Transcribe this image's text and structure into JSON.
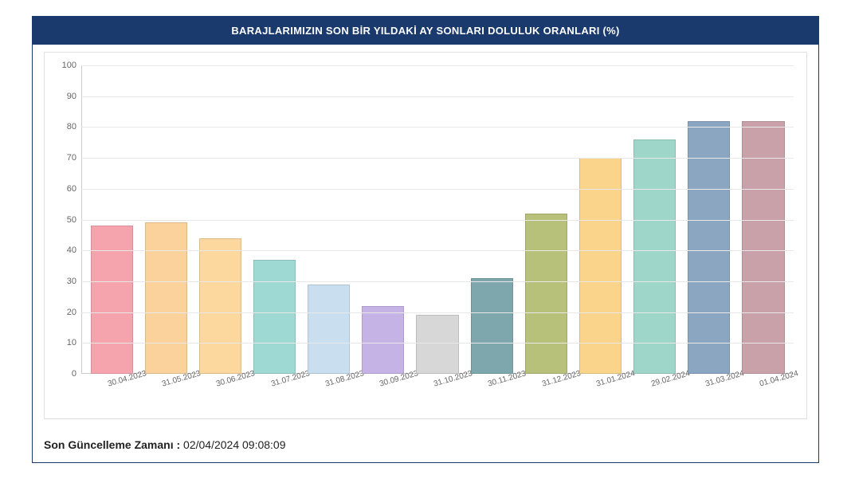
{
  "chart": {
    "type": "bar",
    "title": "BARAJLARIMIZIN SON BİR YILDAKİ AY SONLARI DOLULUK ORANLARI (%)",
    "title_bg": "#1a3a6e",
    "title_color": "#ffffff",
    "title_fontsize": 13,
    "background_color": "#ffffff",
    "frame_border_color": "#1a3a6e",
    "inner_border_color": "#e0e0e0",
    "grid_color": "#e8e8e8",
    "axis_color": "#cccccc",
    "label_color": "#666666",
    "label_fontsize": 11,
    "xlabel_fontsize": 10,
    "xlabel_rotation_deg": -16,
    "y_min": 0,
    "y_max": 100,
    "y_tick_step": 10,
    "y_ticks": [
      0,
      10,
      20,
      30,
      40,
      50,
      60,
      70,
      80,
      90,
      100
    ],
    "bar_width_ratio": 0.78,
    "bar_border_color": "rgba(0,0,0,0.12)",
    "categories": [
      "30.04.2023",
      "31.05.2023",
      "30.06.2023",
      "31.07.2023",
      "31.08.2023",
      "30.09.2023",
      "31.10.2023",
      "30.11.2023",
      "31.12.2023",
      "31.01.2024",
      "29.02.2024",
      "31.03.2024",
      "01.04.2024"
    ],
    "values": [
      48,
      49,
      44,
      37,
      29,
      22,
      19,
      31,
      52,
      70,
      76,
      82,
      82
    ],
    "bar_colors": [
      "#f5a3ad",
      "#fbd29b",
      "#fcd79e",
      "#9fd9d4",
      "#c9dff0",
      "#c5b3e6",
      "#d7d7d7",
      "#7da7ac",
      "#b7c17a",
      "#f9d48a",
      "#9ed6c9",
      "#8aa6c1",
      "#c8a2a8"
    ]
  },
  "footer": {
    "label": "Son Güncelleme Zamanı :",
    "value": "02/04/2024 09:08:09",
    "fontsize": 14,
    "color": "#222222"
  }
}
